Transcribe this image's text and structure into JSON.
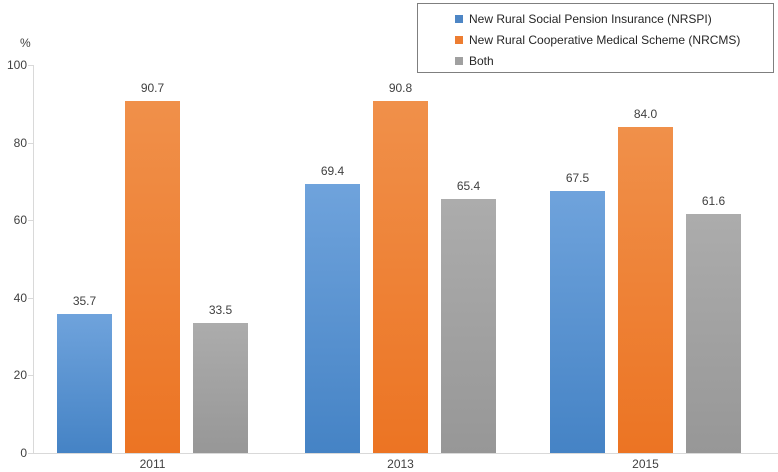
{
  "chart_data": {
    "type": "bar",
    "title": "",
    "ylabel": "%",
    "xlabel": "",
    "ylim": [
      0,
      100
    ],
    "yticks": [
      0,
      20,
      40,
      60,
      80,
      100
    ],
    "grid": false,
    "legend_position": "top-right",
    "value_labels": true,
    "categories": [
      "2011",
      "2013",
      "2015"
    ],
    "series": [
      {
        "name": "New Rural Social Pension Insurance (NRSPI)",
        "color": "#4E86C5",
        "color_top": "#6FA3DC",
        "color_bottom": "#4583C5",
        "values": [
          35.7,
          69.4,
          67.5
        ]
      },
      {
        "name": "New Rural Cooperative Medical Scheme (NRCMS)",
        "color": "#ED7D31",
        "color_top": "#F0904A",
        "color_bottom": "#EC7423",
        "values": [
          90.7,
          90.8,
          84.0
        ]
      },
      {
        "name": "Both",
        "color": "#A0A0A0",
        "color_top": "#ACACAC",
        "color_bottom": "#979797",
        "values": [
          33.5,
          65.4,
          61.6
        ]
      }
    ],
    "axis_color": "#D9D9D9",
    "text_color": "#404040",
    "legend_border_color": "#7F7F7F"
  }
}
